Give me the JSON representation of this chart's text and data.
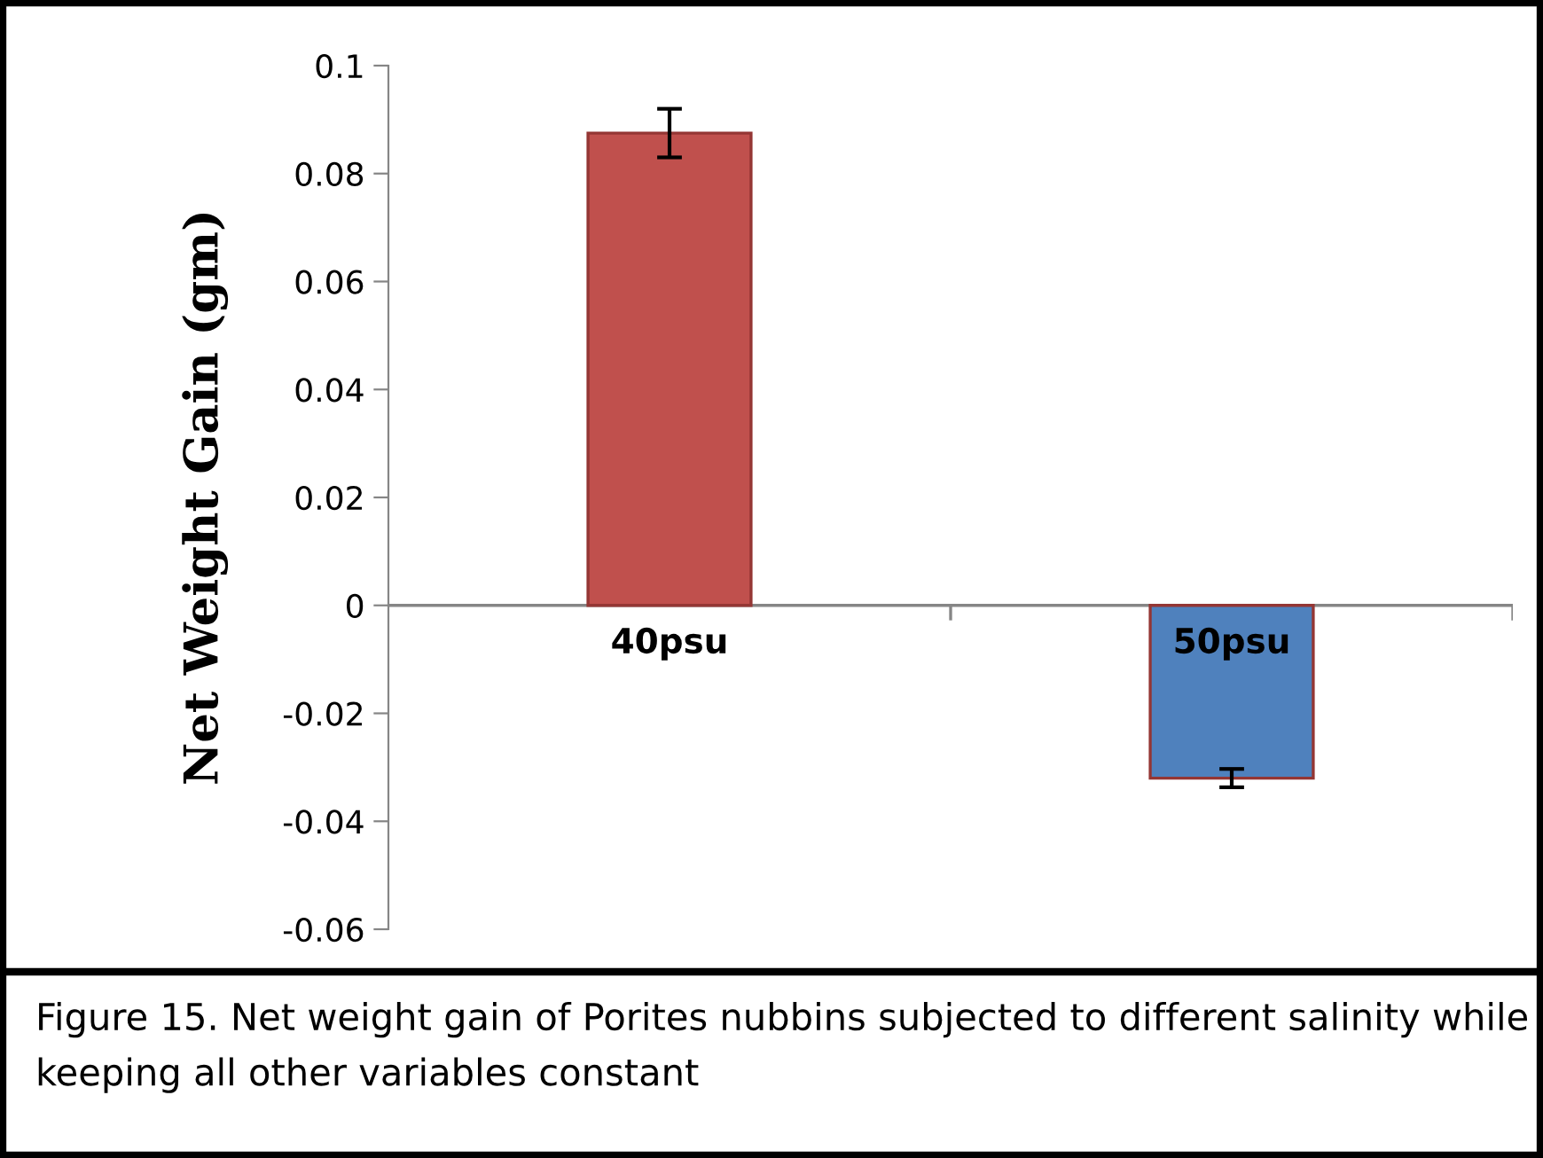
{
  "chart_data": {
    "type": "bar",
    "ylabel": "Net Weight Gain (gm)",
    "categories": [
      "40psu",
      "50psu"
    ],
    "values": [
      0.0875,
      -0.032
    ],
    "errors": [
      0.0045,
      0.0017
    ],
    "colors": [
      "#c0504d",
      "#4f81bd"
    ],
    "ylim": [
      -0.06,
      0.1
    ],
    "yticks": [
      {
        "value": -0.06,
        "label": "-0.06"
      },
      {
        "value": -0.04,
        "label": "-0.04"
      },
      {
        "value": -0.02,
        "label": "-0.02"
      },
      0,
      0.02,
      0.04,
      0.06,
      0.08,
      0.1
    ],
    "grid": false,
    "legend": false,
    "annotations": [
      "Figure 15. Net weight gain of Porites nubbins subjected to different salinity while keeping all other variables constant"
    ]
  }
}
